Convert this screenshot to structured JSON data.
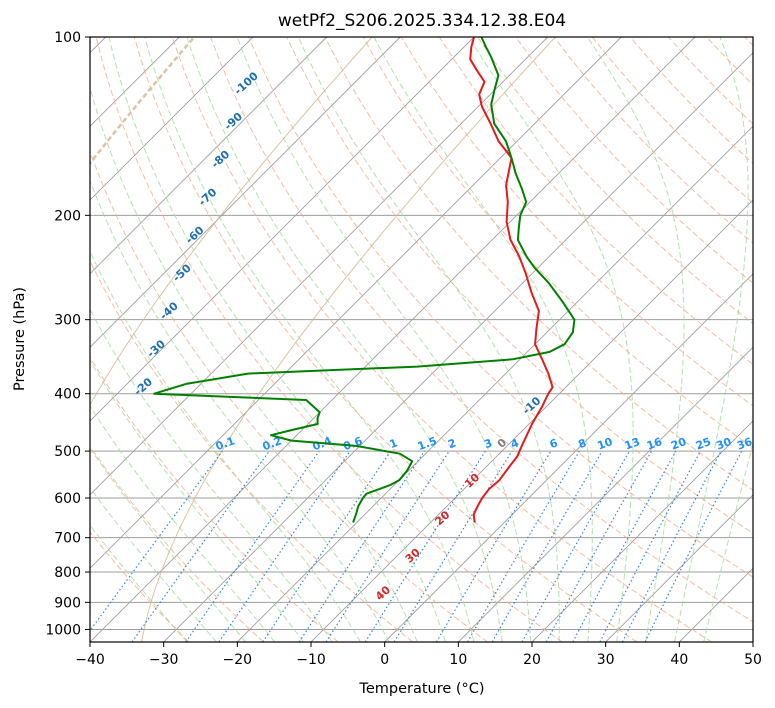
{
  "chart_data": {
    "type": "line",
    "title": "wetPf2_S206.2025.334.12.38.E04",
    "xlabel": "Temperature (°C)",
    "ylabel": "Pressure (hPa)",
    "xlim": [
      -40,
      50
    ],
    "ylim": [
      1050,
      100
    ],
    "y_scale": "log",
    "x_ticks": [
      "-40",
      "-30",
      "-20",
      "-10",
      "0",
      "10",
      "20",
      "30",
      "40",
      "50"
    ],
    "y_ticks": [
      "100",
      "200",
      "300",
      "400",
      "500",
      "600",
      "700",
      "800",
      "900",
      "1000"
    ],
    "grid": true,
    "series": [
      {
        "role": "temperature",
        "color": "#e41a1c",
        "points": [
          [
            -4,
            660
          ],
          [
            -5.2,
            640
          ],
          [
            -5.8,
            620
          ],
          [
            -6.3,
            600
          ],
          [
            -6.6,
            580
          ],
          [
            -6.4,
            560
          ],
          [
            -6.9,
            530
          ],
          [
            -7.2,
            510
          ],
          [
            -8.0,
            490
          ],
          [
            -9.6,
            450
          ],
          [
            -10.6,
            420
          ],
          [
            -11.5,
            400
          ],
          [
            -11.8,
            390
          ],
          [
            -14.2,
            370
          ],
          [
            -17.0,
            350
          ],
          [
            -20.0,
            330
          ],
          [
            -22.0,
            310
          ],
          [
            -24.0,
            290
          ],
          [
            -27.5,
            270
          ],
          [
            -31.0,
            250
          ],
          [
            -34.0,
            235
          ],
          [
            -37.5,
            220
          ],
          [
            -40.5,
            205
          ],
          [
            -43.0,
            190
          ],
          [
            -45.5,
            178
          ],
          [
            -46.8,
            170
          ],
          [
            -48.5,
            160
          ],
          [
            -52.5,
            150
          ],
          [
            -56.0,
            140
          ],
          [
            -59.5,
            131
          ],
          [
            -61.5,
            125
          ],
          [
            -62.5,
            119
          ],
          [
            -65.0,
            114
          ],
          [
            -67.5,
            109
          ],
          [
            -69.0,
            104
          ],
          [
            -70.0,
            100
          ]
        ]
      },
      {
        "role": "dewpoint",
        "color": "#008000",
        "points": [
          [
            -20.5,
            660
          ],
          [
            -21.2,
            640
          ],
          [
            -22.0,
            620
          ],
          [
            -22.5,
            600
          ],
          [
            -22.6,
            590
          ],
          [
            -20.5,
            570
          ],
          [
            -20.0,
            560
          ],
          [
            -20.2,
            540
          ],
          [
            -20.8,
            520
          ],
          [
            -23.5,
            505
          ],
          [
            -30.5,
            490
          ],
          [
            -40.0,
            480
          ],
          [
            -43.5,
            470
          ],
          [
            -41.2,
            460
          ],
          [
            -38.7,
            450
          ],
          [
            -39.5,
            440
          ],
          [
            -40.0,
            430
          ],
          [
            -43.5,
            410
          ],
          [
            -65.0,
            400
          ],
          [
            -62.0,
            385
          ],
          [
            -55.0,
            370
          ],
          [
            -33.0,
            360
          ],
          [
            -21.0,
            350
          ],
          [
            -17.0,
            340
          ],
          [
            -16.0,
            330
          ],
          [
            -16.5,
            315
          ],
          [
            -18.0,
            300
          ],
          [
            -22.0,
            280
          ],
          [
            -26.5,
            260
          ],
          [
            -30.5,
            245
          ],
          [
            -33.0,
            235
          ],
          [
            -36.5,
            220
          ],
          [
            -38.0,
            210
          ],
          [
            -39.5,
            200
          ],
          [
            -40.5,
            190
          ],
          [
            -43.0,
            180
          ],
          [
            -45.8,
            170
          ],
          [
            -48.5,
            160
          ],
          [
            -51.5,
            150
          ],
          [
            -55.5,
            140
          ],
          [
            -58.5,
            130
          ],
          [
            -60.0,
            123
          ],
          [
            -61.5,
            116
          ],
          [
            -65.0,
            108
          ],
          [
            -67.0,
            104
          ],
          [
            -69.0,
            100
          ]
        ]
      }
    ],
    "dry_adiabat_labels": [
      "-100",
      "-90",
      "-80",
      "-70",
      "-60",
      "-50",
      "-40",
      "-30",
      "-20",
      "-10",
      "0",
      "10",
      "20",
      "30",
      "40"
    ],
    "mixing_ratio_labels": [
      "0.1",
      "0.2",
      "0.4",
      "0.6",
      "1",
      "1.5",
      "2",
      "3",
      "4",
      "6",
      "8",
      "10",
      "13",
      "16",
      "20",
      "25",
      "30",
      "36"
    ],
    "colors": {
      "temperature": "#e41a1c",
      "dewpoint": "#008000",
      "dry_adiabat": "#f4a582",
      "moist_adiabat": "#a1d99b",
      "mixing_ratio": "#1f78d4",
      "isotherm": "#9e9e9e",
      "label_cold": "#1f6fb0",
      "label_warm": "#d62728",
      "label_zero": "#7f7f7f",
      "label_mix": "#1e90ff",
      "tan_curve": "#d2b48c"
    }
  }
}
